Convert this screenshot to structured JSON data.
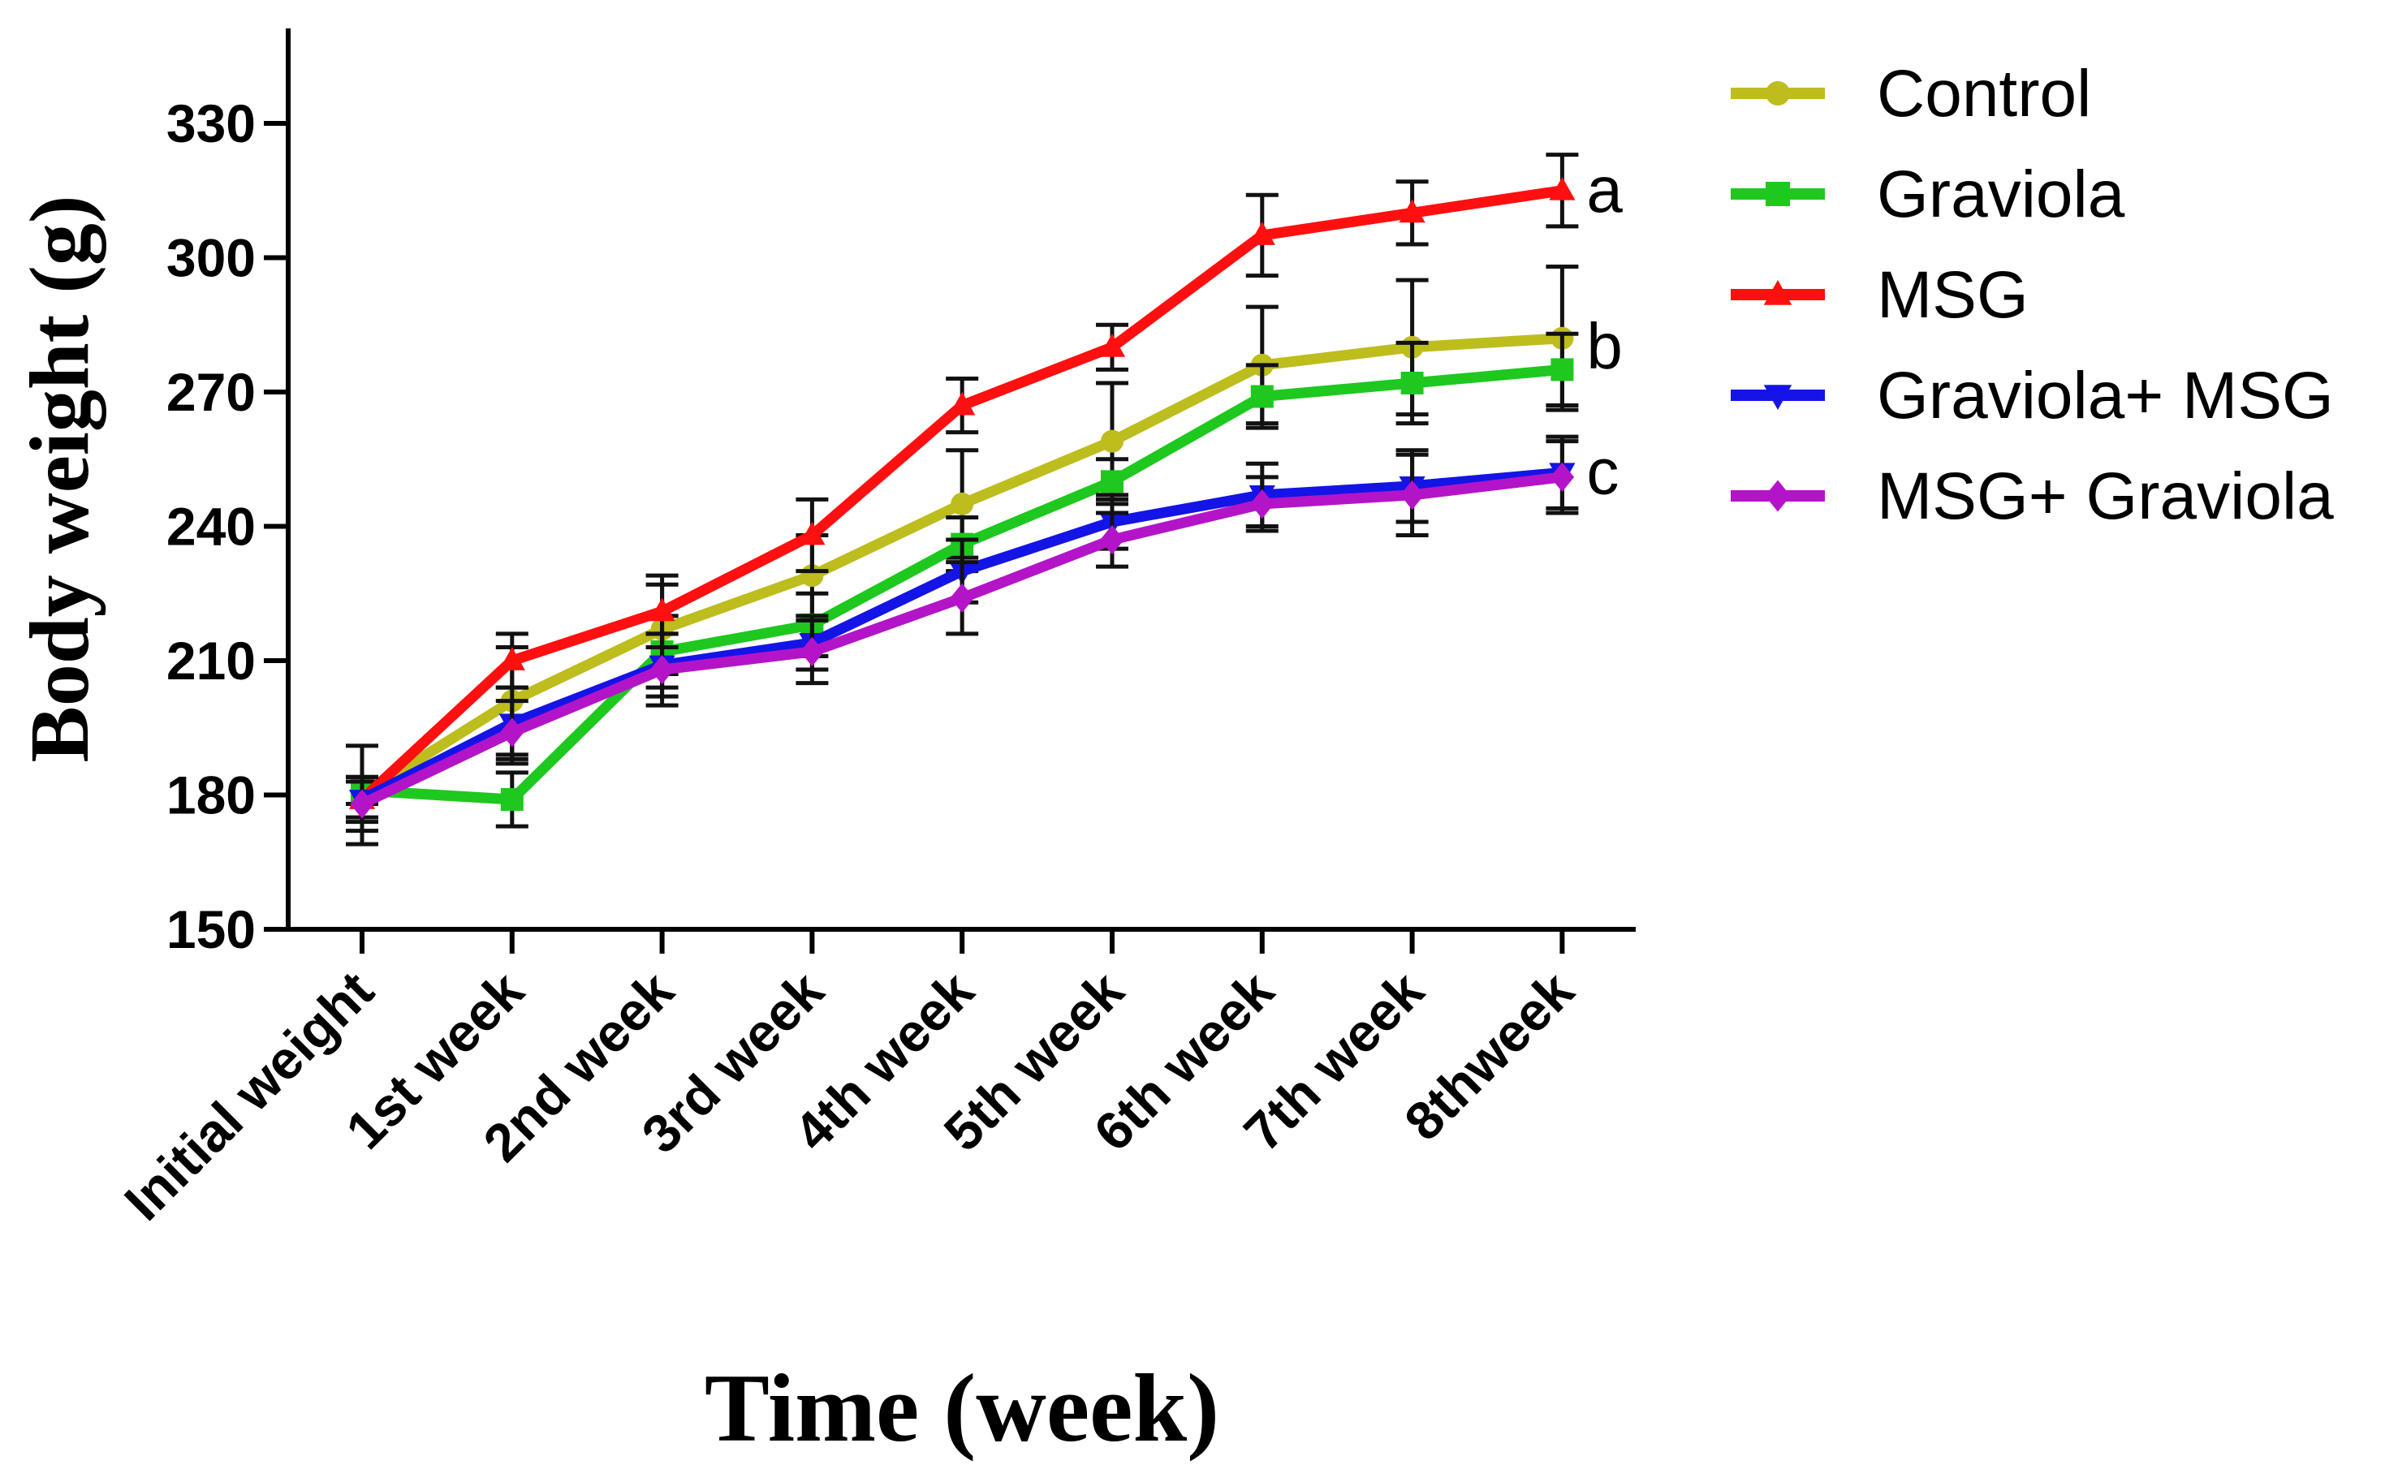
{
  "chart_data": {
    "type": "line",
    "title": "",
    "xlabel": "Time (week)",
    "ylabel": "Body weight (g)",
    "ylim": [
      150,
      350
    ],
    "yticks": [
      150,
      180,
      210,
      240,
      270,
      300,
      330
    ],
    "categories": [
      "Initial weight",
      "1st week",
      "2nd week",
      "3rd week",
      "4th week",
      "5th week",
      "6th week",
      "7th week",
      "8thweek"
    ],
    "grid": false,
    "legend_position": "top-right",
    "error_bars": true,
    "series": [
      {
        "name": "Control",
        "color": "#bdbd1e",
        "marker": "circle",
        "values": [
          180,
          201,
          217,
          229,
          245,
          259,
          276,
          280,
          282
        ],
        "errors": [
          11,
          12,
          10,
          9,
          12,
          13,
          13,
          15,
          16
        ]
      },
      {
        "name": "Graviola",
        "color": "#1ec81e",
        "marker": "square",
        "values": [
          181,
          179,
          212,
          218,
          236,
          250,
          269,
          272,
          275
        ],
        "errors": [
          3,
          6,
          8,
          7,
          6,
          5,
          7,
          9,
          8
        ]
      },
      {
        "name": "MSG",
        "color": "#ff0f0f",
        "marker": "triangle-up",
        "values": [
          179,
          210,
          221,
          238,
          267,
          280,
          305,
          310,
          315
        ],
        "errors": [
          4,
          6,
          8,
          8,
          6,
          5,
          9,
          7,
          8
        ]
      },
      {
        "name": "Graviola+ MSG",
        "color": "#1414e6",
        "marker": "triangle-down",
        "values": [
          179,
          196,
          209,
          214,
          230,
          241,
          247,
          249,
          252
        ],
        "errors": [
          5,
          8,
          7,
          6,
          7,
          6,
          7,
          8,
          8
        ]
      },
      {
        "name": "MSG+ Graviola",
        "color": "#b414c8",
        "marker": "diamond",
        "values": [
          178,
          194,
          208,
          212,
          224,
          237,
          245,
          247,
          251
        ],
        "errors": [
          6,
          7,
          8,
          7,
          8,
          6,
          6,
          9,
          8
        ]
      }
    ],
    "annotations": [
      {
        "text": "a",
        "x": "8thweek",
        "y": 315
      },
      {
        "text": "b",
        "x": "8thweek",
        "y": 280
      },
      {
        "text": "c",
        "x": "8thweek",
        "y": 252
      }
    ]
  }
}
